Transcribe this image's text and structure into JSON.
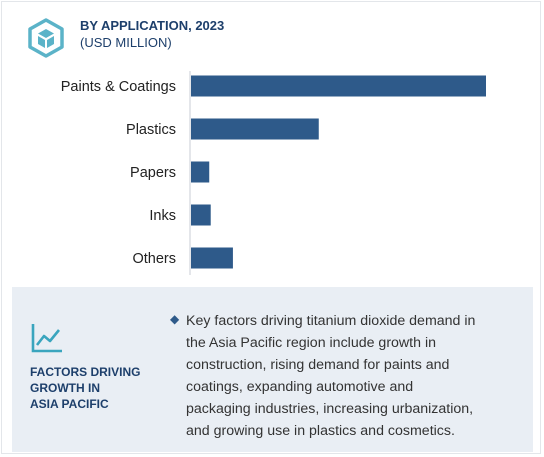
{
  "header": {
    "title": "BY APPLICATION, 2023",
    "subtitle": "(USD MILLION)",
    "logo_icon": "hexagon-cube-icon"
  },
  "chart_data": {
    "type": "bar",
    "orientation": "horizontal",
    "title": "BY APPLICATION, 2023",
    "subtitle": "(USD MILLION)",
    "categories": [
      "Paints & Coatings",
      "Plastics",
      "Papers",
      "Inks",
      "Others"
    ],
    "values": [
      100,
      43.5,
      6.5,
      7,
      14.5
    ],
    "xlim": [
      0,
      100
    ],
    "grid": false,
    "bar_color": "#2e5a8a"
  },
  "factors": {
    "icon": "line-chart-icon",
    "heading_lines": [
      "FACTORS DRIVING",
      "GROWTH IN",
      "ASIA PACIFIC"
    ],
    "bullet": "◆",
    "text_lines": [
      "Key factors driving titanium dioxide demand in",
      "the Asia Pacific region include growth in",
      "construction, rising demand for paints and",
      "coatings, expanding automotive and",
      "packaging industries, increasing urbanization,",
      "and growing use in plastics and cosmetics."
    ]
  }
}
